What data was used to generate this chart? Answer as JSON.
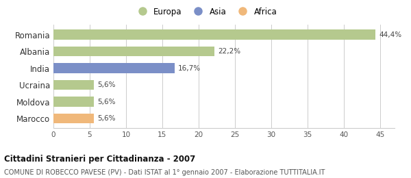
{
  "categories": [
    "Romania",
    "Albania",
    "India",
    "Ucraina",
    "Moldova",
    "Marocco"
  ],
  "values": [
    44.4,
    22.2,
    16.7,
    5.6,
    5.6,
    5.6
  ],
  "labels": [
    "44,4%",
    "22,2%",
    "16,7%",
    "5,6%",
    "5,6%",
    "5,6%"
  ],
  "bar_colors": [
    "#b5c98e",
    "#b5c98e",
    "#7b8fc7",
    "#b5c98e",
    "#b5c98e",
    "#f0b87a"
  ],
  "legend_items": [
    {
      "label": "Europa",
      "color": "#b5c98e"
    },
    {
      "label": "Asia",
      "color": "#7b8fc7"
    },
    {
      "label": "Africa",
      "color": "#f0b87a"
    }
  ],
  "xlim": [
    0,
    47
  ],
  "xticks": [
    0,
    5,
    10,
    15,
    20,
    25,
    30,
    35,
    40,
    45
  ],
  "title": "Cittadini Stranieri per Cittadinanza - 2007",
  "subtitle": "COMUNE DI ROBECCO PAVESE (PV) - Dati ISTAT al 1° gennaio 2007 - Elaborazione TUTTITALIA.IT",
  "background_color": "#ffffff",
  "grid_color": "#cccccc",
  "bar_edge_color": "none"
}
